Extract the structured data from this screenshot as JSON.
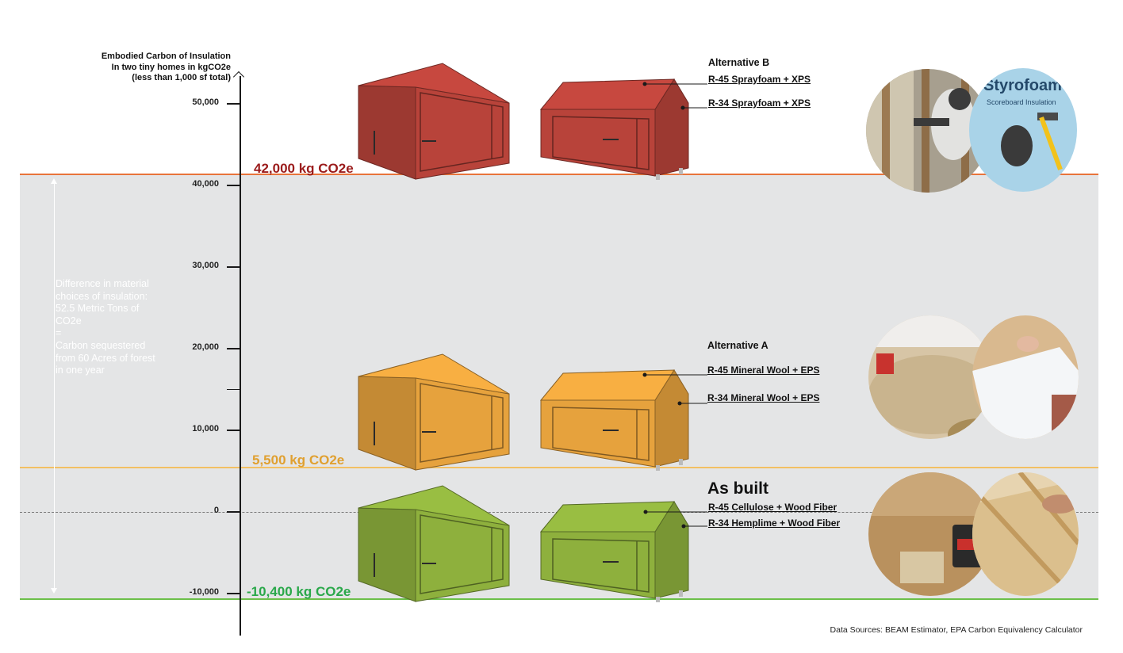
{
  "chart_data": {
    "type": "bar",
    "title": "Embodied Carbon of Insulation\nIn two tiny homes in kgCO2e\n(less than 1,000 sf total)",
    "ylabel": "Embodied Carbon of Insulation In two tiny homes in kgCO2e (less than 1,000 sf total)",
    "ylim": [
      -15000,
      55000
    ],
    "yticks": [
      {
        "value": 50000,
        "label": "50,000"
      },
      {
        "value": 40000,
        "label": "40,000"
      },
      {
        "value": 30000,
        "label": "30,000"
      },
      {
        "value": 20000,
        "label": "20,000"
      },
      {
        "value": 15000,
        "label": ""
      },
      {
        "value": 10000,
        "label": "10,000"
      },
      {
        "value": 0,
        "label": "0"
      },
      {
        "value": -10000,
        "label": "-10,000"
      }
    ],
    "categories": [
      "Alternative B",
      "Alternative A",
      "As built"
    ],
    "values": [
      42000,
      5500,
      -10400
    ],
    "value_labels": [
      "42,000 kg CO2e",
      "5,500 kg CO2e",
      "-10,400 kg CO2e"
    ],
    "colors": [
      "#b8433a",
      "#e6a23d",
      "#8eb03d"
    ],
    "line_colors": [
      "#e8743b",
      "#f2c063",
      "#6cbf4a"
    ],
    "level_text_colors": [
      "#9b1c1c",
      "#e0a030",
      "#2aa84a"
    ],
    "grid": false
  },
  "difference_note": "Difference in material\nchoices of insulation:\n52.5 Metric Tons of\nCO2e\n=\nCarbon sequestered\nfrom 60 Acres of forest\nin one year",
  "alternatives": [
    {
      "title": "Alternative B",
      "specs": [
        "R-45   Sprayfoam + XPS",
        "R-34   Sprayfoam + XPS"
      ],
      "photo_labels": [
        "Styrofoam",
        "Scoreboard Insulation"
      ]
    },
    {
      "title": "Alternative A",
      "specs": [
        "R-45  Mineral Wool + EPS",
        "R-34  Mineral Wool + EPS"
      ],
      "photo_labels": []
    },
    {
      "title": "As built",
      "specs": [
        "R-45 Cellulose + Wood Fiber",
        "R-34 Hemplime + Wood Fiber"
      ],
      "photo_labels": []
    }
  ],
  "source": "Data Sources: BEAM Estimator, EPA Carbon Equivalency Calculator"
}
